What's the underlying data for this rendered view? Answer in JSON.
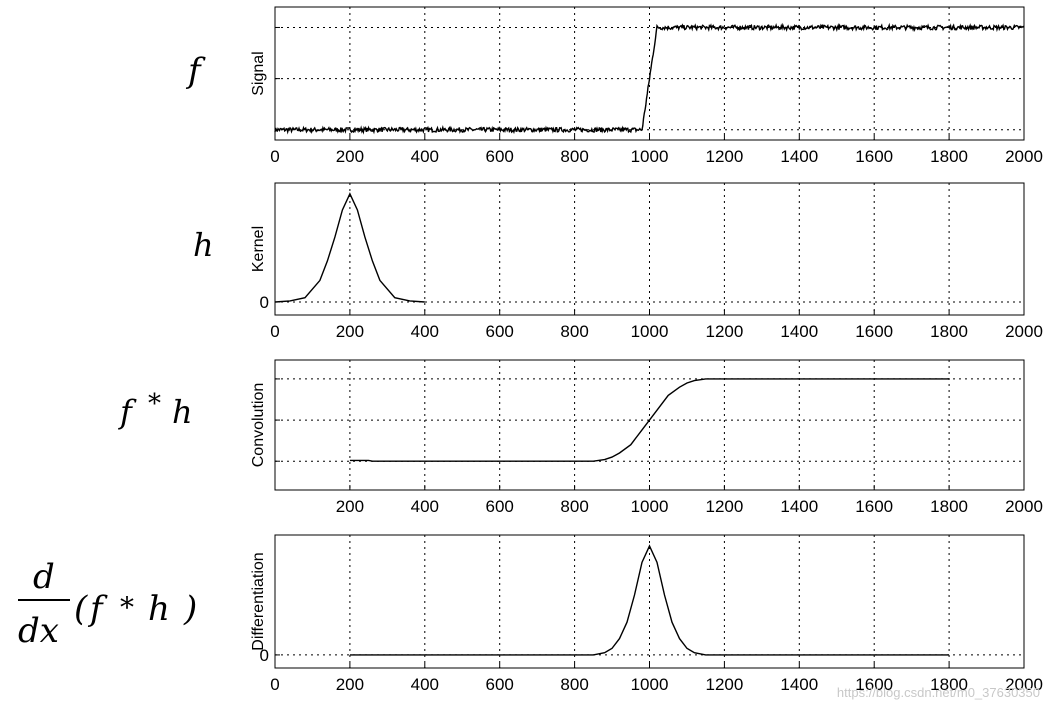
{
  "chart_data": [
    {
      "type": "line",
      "side_label": "f",
      "ylabel": "Signal",
      "xlim": [
        0,
        2000
      ],
      "x_ticks": [
        "0",
        "200",
        "400",
        "600",
        "800",
        "1000",
        "1200",
        "1400",
        "1600",
        "1800",
        "2000"
      ],
      "y_ticks": [],
      "ylim": [
        -0.1,
        1.2
      ],
      "y_grid": [
        0,
        0.5,
        1
      ],
      "noise": 0.022,
      "series": [
        {
          "x": [
            0,
            980,
            1020,
            2000
          ],
          "y": [
            0,
            0,
            1,
            1
          ]
        }
      ]
    },
    {
      "type": "line",
      "side_label": "h",
      "ylabel": "Kernel",
      "xlim": [
        0,
        2000
      ],
      "x_ticks": [
        "0",
        "200",
        "400",
        "600",
        "800",
        "1000",
        "1200",
        "1400",
        "1600",
        "1800",
        "2000"
      ],
      "y_ticks": [
        "0"
      ],
      "ylim": [
        -0.12,
        1.1
      ],
      "y_grid": [
        0
      ],
      "noise": 0,
      "series": [
        {
          "x": [
            0,
            40,
            80,
            120,
            140,
            160,
            180,
            200,
            220,
            240,
            260,
            280,
            320,
            360,
            400
          ],
          "y": [
            0,
            0.01,
            0.04,
            0.2,
            0.38,
            0.6,
            0.85,
            1.0,
            0.85,
            0.6,
            0.38,
            0.2,
            0.04,
            0.01,
            0
          ]
        }
      ]
    },
    {
      "type": "line",
      "side_label": "f * h",
      "ylabel": "Convolution",
      "xlim": [
        0,
        2000
      ],
      "x_ticks": [
        "",
        "200",
        "400",
        "600",
        "800",
        "1000",
        "1200",
        "1400",
        "1600",
        "1800",
        "2000"
      ],
      "y_ticks": [],
      "ylim": [
        -0.35,
        1.23
      ],
      "y_grid": [
        0,
        0.5,
        1
      ],
      "noise": 0,
      "series": [
        {
          "x": [
            200,
            250,
            260,
            850,
            880,
            900,
            920,
            950,
            980,
            1000,
            1020,
            1050,
            1080,
            1100,
            1120,
            1150,
            1800
          ],
          "y": [
            0.01,
            0.01,
            0,
            0,
            0.02,
            0.05,
            0.1,
            0.2,
            0.38,
            0.5,
            0.62,
            0.8,
            0.9,
            0.95,
            0.98,
            1.0,
            1.0
          ]
        }
      ]
    },
    {
      "type": "line",
      "side_label": "d/dx (f * h)",
      "ylabel": "Differentiation",
      "xlim": [
        0,
        2000
      ],
      "x_ticks": [
        "0",
        "200",
        "400",
        "600",
        "800",
        "1000",
        "1200",
        "1400",
        "1600",
        "1800",
        "2000"
      ],
      "y_ticks": [
        "0"
      ],
      "ylim": [
        -0.12,
        1.1
      ],
      "y_grid": [
        0
      ],
      "noise": 0,
      "series": [
        {
          "x": [
            200,
            300,
            400,
            850,
            880,
            900,
            920,
            940,
            960,
            980,
            1000,
            1020,
            1040,
            1060,
            1080,
            1100,
            1120,
            1150,
            1200,
            1800
          ],
          "y": [
            0,
            0,
            0,
            0,
            0.02,
            0.06,
            0.15,
            0.3,
            0.55,
            0.85,
            1.0,
            0.85,
            0.55,
            0.3,
            0.15,
            0.06,
            0.02,
            0,
            0,
            0
          ]
        }
      ]
    }
  ],
  "watermark": "https://blog.csdn.net/m0_37630350"
}
